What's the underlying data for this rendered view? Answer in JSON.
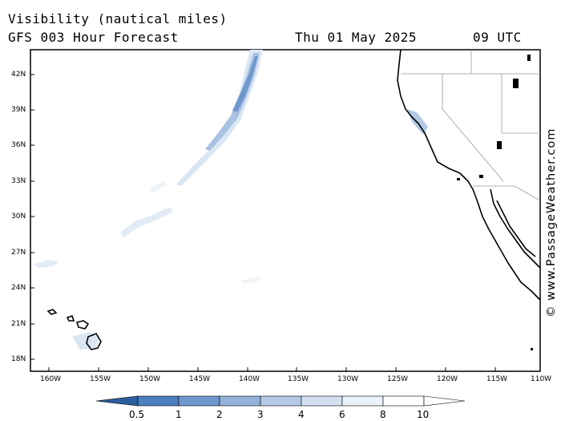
{
  "header": {
    "title": "Visibility (nautical miles)",
    "model_line": "GFS 003 Hour Forecast",
    "date": "Thu 01 May 2025",
    "time": "09 UTC"
  },
  "credit": "© www.PassageWeather.com",
  "map": {
    "lat_labels": [
      "42N",
      "39N",
      "36N",
      "33N",
      "30N",
      "27N",
      "24N",
      "21N",
      "18N"
    ],
    "lon_labels": [
      "160W",
      "155W",
      "150W",
      "145W",
      "140W",
      "135W",
      "130W",
      "125W",
      "120W",
      "115W",
      "110W"
    ],
    "ocean_color": "#ffffff",
    "coast_color": "#000000",
    "border_color": "#999999"
  },
  "colorbar": {
    "labels": [
      "0.5",
      "1",
      "2",
      "3",
      "4",
      "6",
      "8",
      "10"
    ],
    "colors": [
      "#3b6fb3",
      "#4a7fc0",
      "#6f98cd",
      "#93b2da",
      "#b3c9e5",
      "#d2e0f0",
      "#ebf1f8",
      "#ffffff"
    ]
  }
}
